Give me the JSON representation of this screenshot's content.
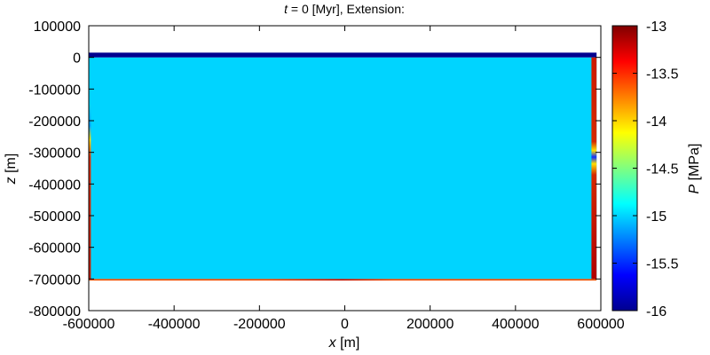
{
  "chart_data": {
    "type": "heatmap",
    "title": {
      "var": "t",
      "rest": " = 0 [Myr], Extension:"
    },
    "xlabel": {
      "var": "x",
      "unit": " [m]"
    },
    "ylabel": {
      "var": "z",
      "unit": " [m]"
    },
    "colorbar_label": {
      "var": "P",
      "unit": " [MPa]"
    },
    "xlim": [
      -600000,
      600000
    ],
    "ylim": [
      -800000,
      100000
    ],
    "xticks": [
      -600000,
      -400000,
      -200000,
      0,
      200000,
      400000,
      600000
    ],
    "yticks": [
      100000,
      0,
      -100000,
      -200000,
      -300000,
      -400000,
      -500000,
      -600000,
      -700000,
      -800000
    ],
    "colorbar_range": [
      -16,
      -13
    ],
    "colorbar_ticks": [
      -13,
      -13.5,
      -14,
      -14.5,
      -15,
      -15.5,
      -16
    ],
    "colormap": "jet",
    "domain": {
      "x": [
        -600000,
        590000
      ],
      "z": [
        -700000,
        15000
      ]
    },
    "regions": [
      {
        "name": "interior",
        "value": -15,
        "x": [
          -600000,
          590000
        ],
        "z": [
          -700000,
          0
        ]
      },
      {
        "name": "top-layer",
        "value": -16,
        "x": [
          -600000,
          590000
        ],
        "z": [
          0,
          15000
        ]
      },
      {
        "name": "bottom-boundary",
        "value": -13.7,
        "x": [
          -600000,
          590000
        ],
        "z": [
          -705000,
          -700000
        ]
      },
      {
        "name": "right-boundary",
        "value": -13.2,
        "x": [
          578000,
          590000
        ],
        "z": [
          -700000,
          0
        ]
      },
      {
        "name": "left-boundary",
        "value": -13.3,
        "x": [
          -600000,
          -595000
        ],
        "z": [
          -700000,
          -150000
        ]
      }
    ]
  }
}
